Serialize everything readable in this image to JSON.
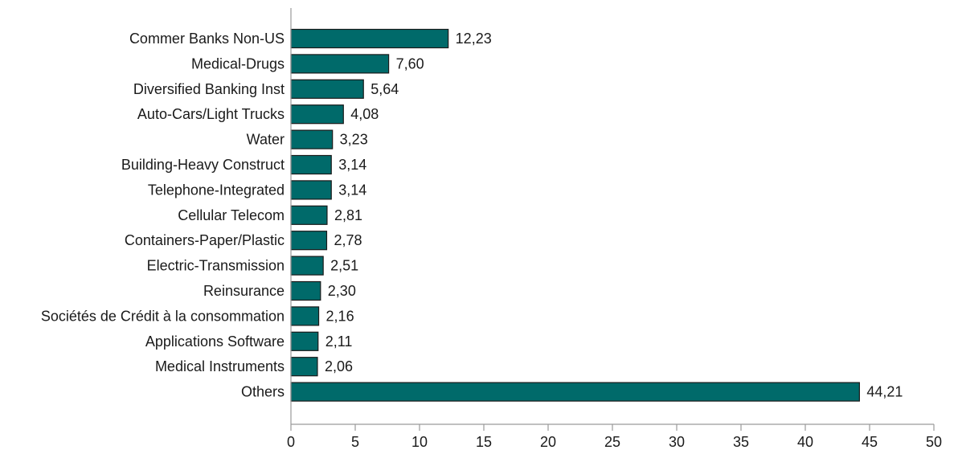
{
  "chart_data": {
    "type": "bar",
    "orientation": "horizontal",
    "title": "",
    "xlabel": "",
    "ylabel": "",
    "categories": [
      "Commer Banks Non-US",
      "Medical-Drugs",
      "Diversified Banking Inst",
      "Auto-Cars/Light Trucks",
      "Water",
      "Building-Heavy Construct",
      "Telephone-Integrated",
      "Cellular Telecom",
      "Containers-Paper/Plastic",
      "Electric-Transmission",
      "Reinsurance",
      "Sociétés de Crédit à la consommation",
      "Applications Software",
      "Medical Instruments",
      "Others"
    ],
    "values": [
      12.23,
      7.6,
      5.64,
      4.08,
      3.23,
      3.14,
      3.14,
      2.81,
      2.78,
      2.51,
      2.3,
      2.16,
      2.11,
      2.06,
      44.21
    ],
    "value_labels": [
      "12,23",
      "7,60",
      "5,64",
      "4,08",
      "3,23",
      "3,14",
      "3,14",
      "2,81",
      "2,78",
      "2,51",
      "2,30",
      "2,16",
      "2,11",
      "2,06",
      "44,21"
    ],
    "xlim": [
      0,
      50
    ],
    "xticks": [
      0,
      5,
      10,
      15,
      20,
      25,
      30,
      35,
      40,
      45,
      50
    ],
    "grid": false,
    "legend": "none",
    "bar_color": "#006a6a",
    "bar_edge_color": "#1a1a1a"
  }
}
